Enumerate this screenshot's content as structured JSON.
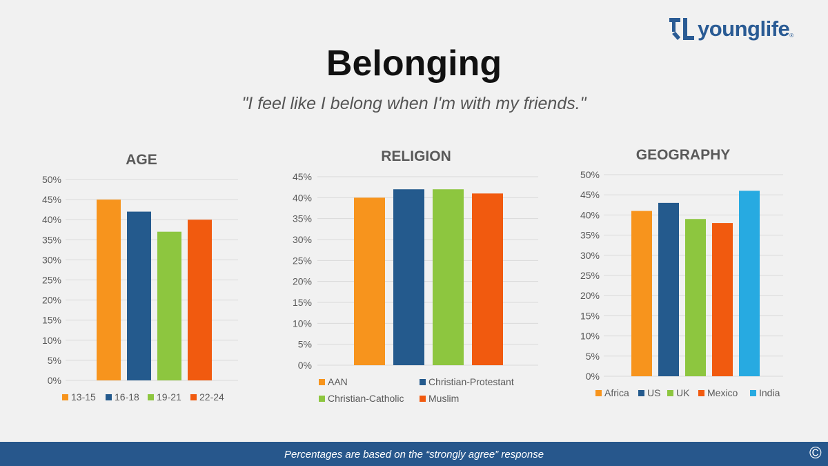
{
  "header": {
    "logo_text": "younglife",
    "logo_reg": "®",
    "title": "Belonging",
    "subtitle": "\"I feel like I belong when I'm with my friends.\""
  },
  "footer": {
    "note": "Percentages are based on the “strongly agree” response",
    "copyright": "©"
  },
  "colors": {
    "orange": "#f7941d",
    "navy": "#245a8d",
    "green": "#8dc63f",
    "red_orange": "#f15a0f",
    "sky_blue": "#27aae1",
    "footer_bar": "#27578c",
    "brand": "#2a5b94"
  },
  "chart_data": [
    {
      "type": "bar",
      "title": "AGE",
      "categories": [
        "13-15",
        "16-18",
        "19-21",
        "22-24"
      ],
      "values": [
        45,
        42,
        37,
        40
      ],
      "colors": [
        "#f7941d",
        "#245a8d",
        "#8dc63f",
        "#f15a0f"
      ],
      "ylim": [
        0,
        50
      ],
      "yticks": [
        "0%",
        "5%",
        "10%",
        "15%",
        "20%",
        "25%",
        "30%",
        "35%",
        "40%",
        "45%",
        "50%"
      ],
      "grid": true,
      "legend": "bottom"
    },
    {
      "type": "bar",
      "title": "RELIGION",
      "categories": [
        "AAN",
        "Christian-Protestant",
        "Christian-Catholic",
        "Muslim"
      ],
      "values": [
        40,
        42,
        42,
        41
      ],
      "colors": [
        "#f7941d",
        "#245a8d",
        "#8dc63f",
        "#f15a0f"
      ],
      "ylim": [
        0,
        45
      ],
      "yticks": [
        "0%",
        "5%",
        "10%",
        "15%",
        "20%",
        "25%",
        "30%",
        "35%",
        "40%",
        "45%"
      ],
      "grid": true,
      "legend": "bottom"
    },
    {
      "type": "bar",
      "title": "GEOGRAPHY",
      "categories": [
        "Africa",
        "US",
        "UK",
        "Mexico",
        "India"
      ],
      "values": [
        41,
        43,
        39,
        38,
        46
      ],
      "colors": [
        "#f7941d",
        "#245a8d",
        "#8dc63f",
        "#f15a0f",
        "#27aae1"
      ],
      "ylim": [
        0,
        50
      ],
      "yticks": [
        "0%",
        "5%",
        "10%",
        "15%",
        "20%",
        "25%",
        "30%",
        "35%",
        "40%",
        "45%",
        "50%"
      ],
      "grid": true,
      "legend": "bottom"
    }
  ]
}
